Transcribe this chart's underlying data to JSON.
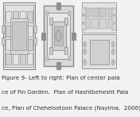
{
  "fig_bg": "#f2f2f2",
  "panel_bg": "#ffffff",
  "caption_lines": [
    "Figure 9- Left to right: Plan of center pala",
    "ce of Fin Garden.  Plan of Hashtbehesht Pala",
    "ce, Plan of Chehelsotoon Palace (Nayima,  2006)"
  ],
  "caption_fontsize": 5.2,
  "caption_color": "#333333",
  "wall_color": "#888888",
  "room_color": "#cccccc",
  "light_color": "#e8e8e8",
  "dark_color": "#999999"
}
